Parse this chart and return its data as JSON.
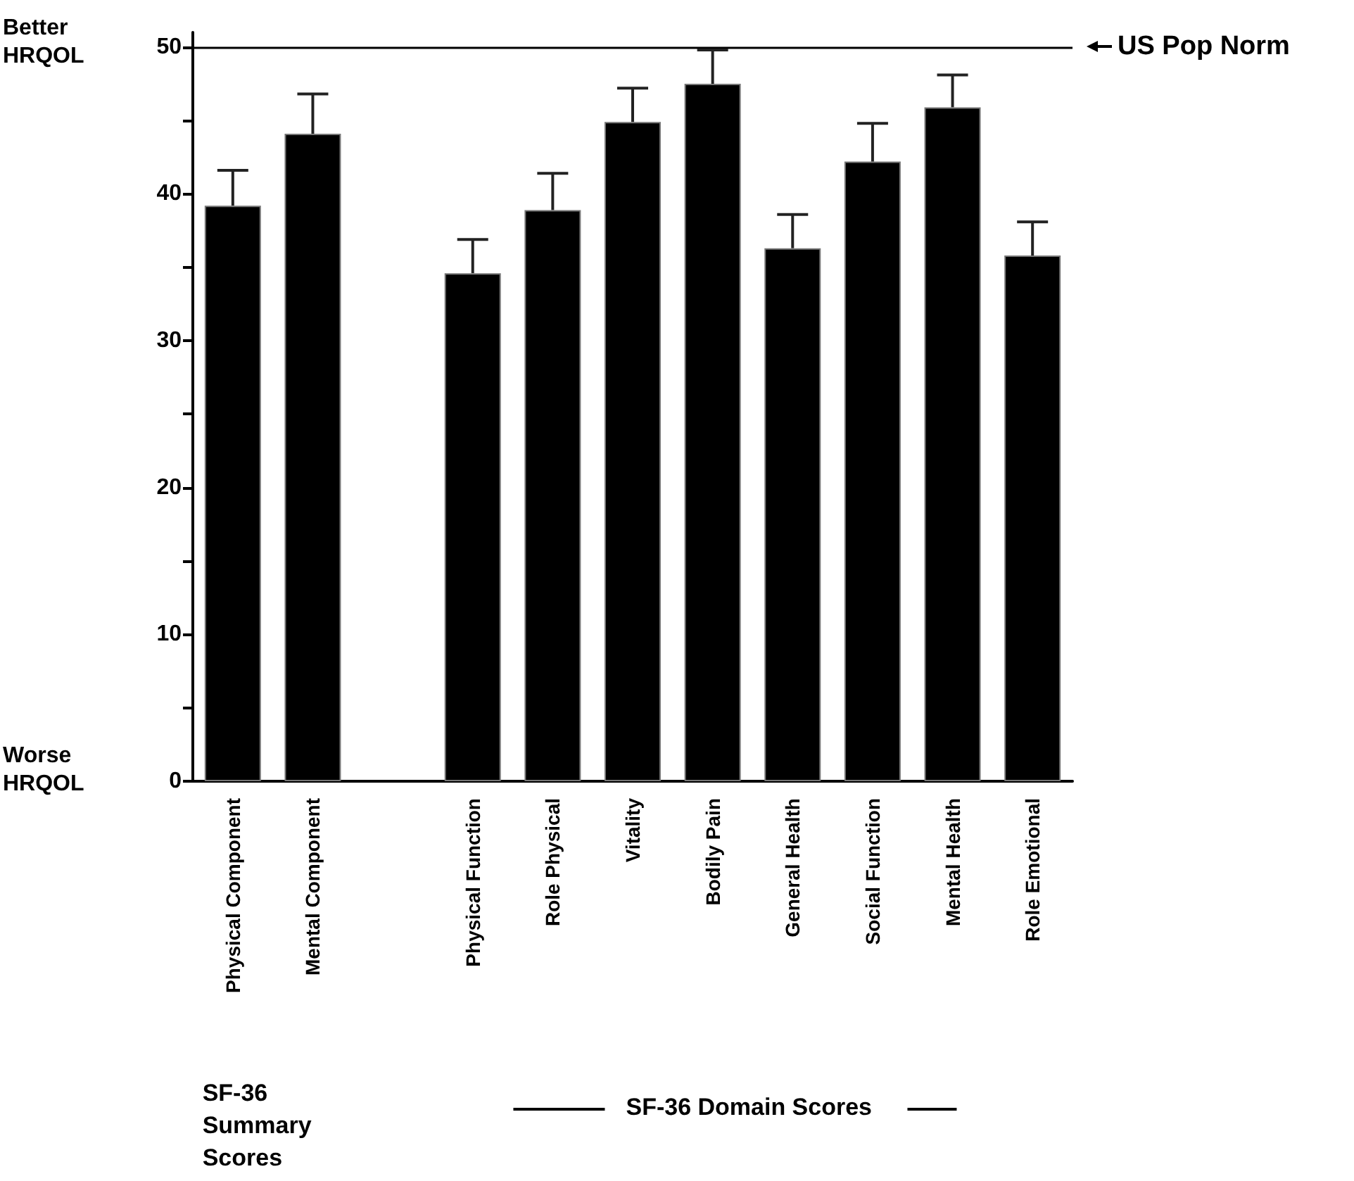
{
  "chart_data": {
    "type": "bar",
    "categories": [
      "Physical Component",
      "Mental Component",
      null,
      "Physical Function",
      "Role Physical",
      "Vitality",
      "Bodily Pain",
      "General Health",
      "Social Function",
      "Mental Health",
      "Role Emotional"
    ],
    "values": [
      39.2,
      44.1,
      null,
      34.6,
      38.9,
      44.9,
      47.5,
      36.3,
      42.2,
      45.9,
      35.8
    ],
    "errors": [
      [
        39.2,
        41.6
      ],
      [
        44.1,
        46.8
      ],
      null,
      [
        34.6,
        36.9
      ],
      [
        38.9,
        41.4
      ],
      [
        44.9,
        47.2
      ],
      [
        47.5,
        49.8
      ],
      [
        36.3,
        38.6
      ],
      [
        42.2,
        44.8
      ],
      [
        45.9,
        48.1
      ],
      [
        35.8,
        38.1
      ]
    ],
    "color": "#000000",
    "ylim": [
      0,
      51
    ],
    "yticks": [
      0,
      {
        "value": 5,
        "label": null
      },
      10,
      {
        "value": 15,
        "label": null
      },
      20,
      {
        "value": 25,
        "label": null
      },
      30,
      {
        "value": 35,
        "label": null
      },
      40,
      {
        "value": 45,
        "label": null
      },
      50
    ],
    "ref_lines": [
      {
        "axis": "y",
        "value": 50,
        "label": "US Pop Norm",
        "color": "#000000"
      }
    ],
    "annotations": [
      "Better HRQOL",
      "Worse HRQOL",
      "SF-36 Summary Scores",
      "SF-36 Domain Scores"
    ],
    "grid": false
  }
}
